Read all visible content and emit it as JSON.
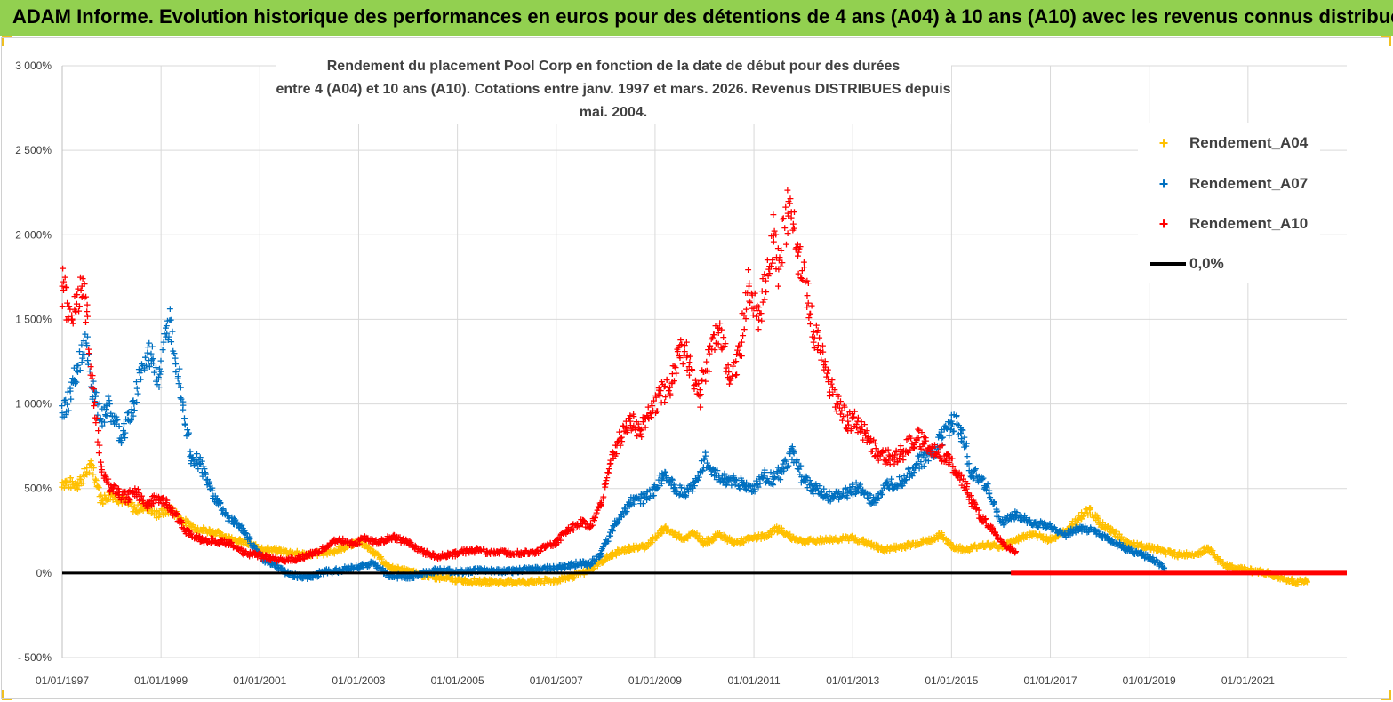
{
  "banner": {
    "title": "ADAM Informe. Evolution historique des performances en euros pour des détentions de 4 ans (A04) à 10 ans (A10) avec les revenus connus distribués"
  },
  "colors": {
    "banner_bg": "#92d050",
    "a04": "#ffc000",
    "a07": "#0070c0",
    "a10": "#ff0000",
    "zero": "#000000",
    "grid": "#d9d9d9",
    "text": "#404040"
  },
  "chart_data": {
    "type": "scatter",
    "title_line1": "Rendement du placement Pool Corp en fonction de la date de début pour des durées",
    "title_line2": "entre 4 (A04) et 10 ans (A10).  Cotations entre janv. 1997 et mars. 2026. Revenus DISTRIBUES depuis mai. 2004.",
    "xlabel": "",
    "ylabel": "",
    "xlim": [
      1997.0,
      2023.0
    ],
    "ylim": [
      -500,
      3000
    ],
    "y_ticks": [
      {
        "value": 3000,
        "label": "3 000%"
      },
      {
        "value": 2500,
        "label": "2 500%"
      },
      {
        "value": 2000,
        "label": "2 000%"
      },
      {
        "value": 1500,
        "label": "1 500%"
      },
      {
        "value": 1000,
        "label": "1 000%"
      },
      {
        "value": 500,
        "label": "500%"
      },
      {
        "value": 0,
        "label": "0%"
      },
      {
        "value": -500,
        "label": "- 500%"
      }
    ],
    "x_ticks": [
      {
        "value": 1997.0,
        "label": "01/01/1997"
      },
      {
        "value": 1999.0,
        "label": "01/01/1999"
      },
      {
        "value": 2001.0,
        "label": "01/01/2001"
      },
      {
        "value": 2003.0,
        "label": "01/01/2003"
      },
      {
        "value": 2005.0,
        "label": "01/01/2005"
      },
      {
        "value": 2007.0,
        "label": "01/01/2007"
      },
      {
        "value": 2009.0,
        "label": "01/01/2009"
      },
      {
        "value": 2011.0,
        "label": "01/01/2011"
      },
      {
        "value": 2013.0,
        "label": "01/01/2013"
      },
      {
        "value": 2015.0,
        "label": "01/01/2015"
      },
      {
        "value": 2017.0,
        "label": "01/01/2017"
      },
      {
        "value": 2019.0,
        "label": "01/01/2019"
      },
      {
        "value": 2021.0,
        "label": "01/01/2021"
      }
    ],
    "series": [
      {
        "name": "Rendement_A04",
        "x": [
          1997.0,
          1997.3,
          1997.5,
          1997.6,
          1997.8,
          1998.0,
          1998.3,
          1998.5,
          1998.7,
          1998.9,
          1999.2,
          1999.5,
          1999.8,
          2000.0,
          2000.3,
          2000.6,
          2001.0,
          2001.5,
          2002.0,
          2002.5,
          2003.0,
          2003.3,
          2003.6,
          2004.0,
          2004.5,
          2005.0,
          2005.5,
          2006.0,
          2006.5,
          2007.0,
          2007.3,
          2007.6,
          2007.9,
          2008.2,
          2008.5,
          2008.8,
          2009.0,
          2009.2,
          2009.4,
          2009.6,
          2009.8,
          2010.0,
          2010.3,
          2010.6,
          2011.0,
          2011.3,
          2011.5,
          2011.7,
          2012.0,
          2012.5,
          2013.0,
          2013.3,
          2013.6,
          2014.0,
          2014.3,
          2014.6,
          2014.8,
          2015.0,
          2015.3,
          2015.6,
          2016.0,
          2016.3,
          2016.6,
          2017.0,
          2017.3,
          2017.6,
          2017.8,
          2018.0,
          2018.3,
          2018.6,
          2019.0,
          2019.3,
          2019.6,
          2020.0,
          2020.2,
          2020.4,
          2020.6,
          2021.0,
          2021.3,
          2021.6,
          2021.8,
          2022.0,
          2022.2
        ],
        "y": [
          540,
          530,
          600,
          640,
          430,
          470,
          420,
          380,
          400,
          350,
          380,
          300,
          260,
          250,
          220,
          190,
          150,
          130,
          110,
          130,
          190,
          130,
          40,
          10,
          -20,
          -40,
          -50,
          -50,
          -50,
          -40,
          -20,
          10,
          70,
          120,
          150,
          160,
          210,
          270,
          230,
          210,
          240,
          180,
          230,
          180,
          210,
          230,
          270,
          220,
          190,
          200,
          210,
          180,
          140,
          160,
          180,
          200,
          230,
          160,
          140,
          170,
          160,
          200,
          230,
          200,
          250,
          330,
          380,
          300,
          240,
          170,
          160,
          130,
          110,
          120,
          150,
          80,
          40,
          20,
          10,
          -20,
          -40,
          -50,
          -50
        ]
      },
      {
        "name": "Rendement_A07",
        "x": [
          1997.0,
          1997.1,
          1997.3,
          1997.5,
          1997.6,
          1997.8,
          1997.9,
          1998.2,
          1998.4,
          1998.6,
          1998.8,
          1998.95,
          1999.1,
          1999.2,
          1999.4,
          1999.6,
          1999.8,
          2000.0,
          2000.3,
          2000.6,
          2000.9,
          2001.1,
          2001.3,
          2001.5,
          2001.8,
          2002.0,
          2002.3,
          2002.6,
          2003.0,
          2003.3,
          2003.6,
          2004.0,
          2004.3,
          2004.6,
          2005.0,
          2005.5,
          2006.0,
          2006.5,
          2007.0,
          2007.3,
          2007.5,
          2007.7,
          2007.9,
          2008.2,
          2008.5,
          2008.8,
          2009.0,
          2009.2,
          2009.4,
          2009.6,
          2009.8,
          2010.0,
          2010.2,
          2010.4,
          2010.6,
          2010.8,
          2011.0,
          2011.2,
          2011.4,
          2011.6,
          2011.8,
          2012.0,
          2012.3,
          2012.6,
          2012.9,
          2013.1,
          2013.4,
          2013.7,
          2014.0,
          2014.3,
          2014.6,
          2014.8,
          2015.0,
          2015.2,
          2015.4,
          2015.7,
          2016.0,
          2016.3,
          2016.6,
          2017.0,
          2017.3,
          2017.6,
          2017.9,
          2018.2,
          2018.5,
          2018.8,
          2019.1,
          2019.3
        ],
        "y": [
          950,
          1000,
          1200,
          1350,
          1100,
          900,
          1000,
          800,
          950,
          1200,
          1300,
          1150,
          1400,
          1500,
          1100,
          700,
          650,
          500,
          350,
          280,
          150,
          80,
          50,
          10,
          -20,
          -20,
          10,
          20,
          40,
          60,
          -10,
          -20,
          0,
          20,
          10,
          20,
          10,
          30,
          30,
          50,
          60,
          60,
          120,
          300,
          420,
          450,
          500,
          600,
          510,
          480,
          520,
          680,
          580,
          560,
          550,
          520,
          500,
          580,
          560,
          620,
          720,
          550,
          490,
          450,
          480,
          510,
          420,
          520,
          550,
          650,
          700,
          800,
          900,
          850,
          600,
          520,
          300,
          350,
          300,
          280,
          230,
          270,
          250,
          200,
          150,
          120,
          80,
          30
        ]
      },
      {
        "name": "Rendement_A10",
        "x": [
          1997.0,
          1997.1,
          1997.2,
          1997.3,
          1997.4,
          1997.5,
          1997.6,
          1997.8,
          1998.0,
          1998.3,
          1998.5,
          1998.7,
          1998.9,
          1999.1,
          1999.3,
          1999.5,
          1999.8,
          2000.1,
          2000.4,
          2000.7,
          2000.9,
          2001.2,
          2001.5,
          2001.8,
          2002.0,
          2002.3,
          2002.6,
          2002.9,
          2003.1,
          2003.4,
          2003.7,
          2004.0,
          2004.3,
          2004.6,
          2005.0,
          2005.3,
          2005.6,
          2006.0,
          2006.3,
          2006.6,
          2006.8,
          2007.0,
          2007.2,
          2007.5,
          2007.7,
          2007.9,
          2008.1,
          2008.3,
          2008.5,
          2008.7,
          2008.9,
          2009.1,
          2009.3,
          2009.5,
          2009.7,
          2009.9,
          2010.1,
          2010.3,
          2010.5,
          2010.7,
          2010.9,
          2011.1,
          2011.3,
          2011.4,
          2011.5,
          2011.7,
          2011.9,
          2012.1,
          2012.3,
          2012.5,
          2012.7,
          2012.9,
          2013.1,
          2013.3,
          2013.5,
          2013.8,
          2014.0,
          2014.3,
          2014.6,
          2014.9,
          2015.1,
          2015.3,
          2015.5,
          2015.7,
          2015.9,
          2016.1,
          2016.3
        ],
        "y": [
          1700,
          1600,
          1500,
          1650,
          1700,
          1550,
          1100,
          600,
          500,
          450,
          480,
          400,
          450,
          420,
          350,
          250,
          200,
          190,
          180,
          120,
          110,
          90,
          80,
          90,
          110,
          150,
          200,
          170,
          210,
          180,
          220,
          180,
          130,
          100,
          120,
          140,
          130,
          120,
          120,
          130,
          160,
          180,
          250,
          300,
          280,
          400,
          650,
          800,
          900,
          850,
          950,
          1050,
          1100,
          1350,
          1250,
          1050,
          1300,
          1450,
          1150,
          1300,
          1700,
          1500,
          1800,
          2000,
          1800,
          2200,
          1900,
          1600,
          1350,
          1150,
          1000,
          900,
          900,
          800,
          700,
          680,
          720,
          800,
          750,
          700,
          600,
          500,
          380,
          300,
          230,
          160,
          130
        ]
      }
    ],
    "reference_line": {
      "name": "0,0%",
      "y": 0
    },
    "a10_zero_band": {
      "x_start": 2016.2,
      "x_end": 2023.0,
      "y": 0
    },
    "legend": {
      "position": "top-right",
      "items": [
        {
          "label": "Rendement_A04",
          "marker": "+",
          "color": "#ffc000"
        },
        {
          "label": "Rendement_A07",
          "marker": "+",
          "color": "#0070c0"
        },
        {
          "label": "Rendement_A10",
          "marker": "+",
          "color": "#ff0000"
        },
        {
          "label": "0,0%",
          "marker": "line",
          "color": "#000000"
        }
      ]
    }
  }
}
